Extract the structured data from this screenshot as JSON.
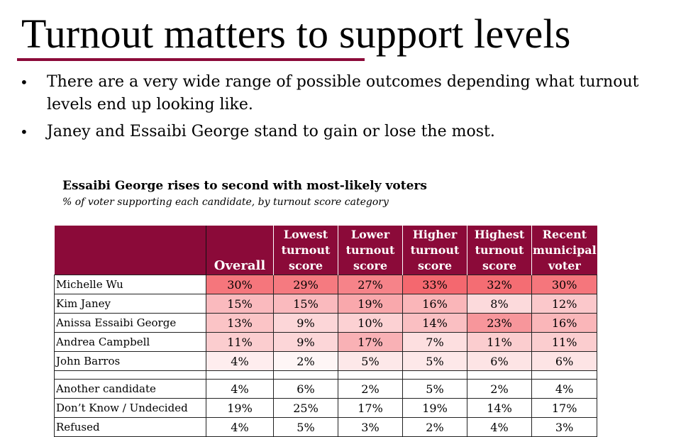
{
  "slide": {
    "title": "Turnout matters to support levels",
    "accent_color": "#8b0a39",
    "bullets": [
      "There are a very wide range of possible outcomes depending what turnout levels end up looking like.",
      "Janey and Essaibi George stand to gain or lose the most."
    ],
    "bullet_glyph": "•"
  },
  "chart_data": {
    "type": "table",
    "title": "Essaibi George rises to second with most-likely voters",
    "subtitle": "% of voter supporting each candidate, by turnout score category",
    "columns": [
      "Overall",
      "Lowest turnout score",
      "Lower turnout score",
      "Higher turnout score",
      "Highest turnout score",
      "Recent municipal voter"
    ],
    "candidate_rows": [
      {
        "name": "Michelle Wu",
        "values": [
          30,
          29,
          27,
          33,
          32,
          30
        ]
      },
      {
        "name": "Kim Janey",
        "values": [
          15,
          15,
          19,
          16,
          8,
          12
        ]
      },
      {
        "name": "Anissa Essaibi George",
        "values": [
          13,
          9,
          10,
          14,
          23,
          16
        ]
      },
      {
        "name": "Andrea Campbell",
        "values": [
          11,
          9,
          17,
          7,
          11,
          11
        ]
      },
      {
        "name": "John Barros",
        "values": [
          4,
          2,
          5,
          5,
          6,
          6
        ]
      }
    ],
    "other_rows": [
      {
        "name": "Another candidate",
        "values": [
          4,
          6,
          2,
          5,
          2,
          4
        ]
      },
      {
        "name": "Don’t Know / Undecided",
        "values": [
          19,
          25,
          17,
          19,
          14,
          17
        ]
      },
      {
        "name": "Refused",
        "values": [
          4,
          5,
          3,
          2,
          4,
          3
        ]
      }
    ],
    "unit": "%",
    "heat_colors": {
      "low": "#ffffff",
      "high": "#f4686f"
    }
  }
}
